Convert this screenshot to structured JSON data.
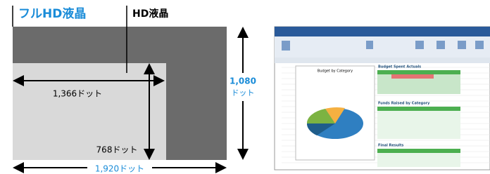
{
  "labels": {
    "full_hd": "フルHD液晶",
    "hd": "HD液晶",
    "hd_width": "1,366ドット",
    "hd_height": "768ドット",
    "full_height": [
      "1,080",
      "ドット"
    ],
    "full_width": "1,920ドット"
  },
  "screenshot": {
    "chart_title": "Budget by Category",
    "sections": [
      "Budget Spent Actuals",
      "Funds Raised by Category",
      "Final Results"
    ]
  }
}
